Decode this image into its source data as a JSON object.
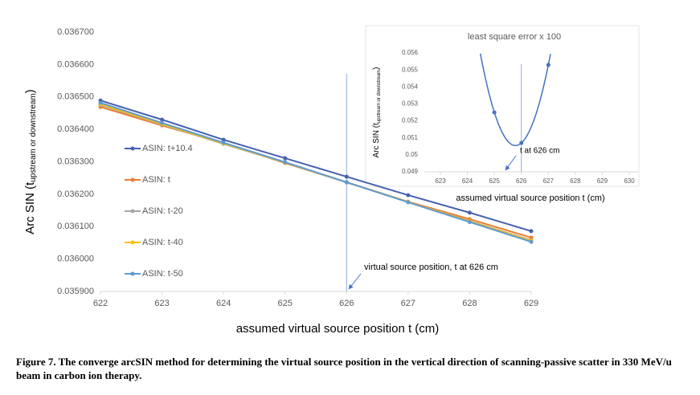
{
  "chart_data": [
    {
      "type": "line",
      "x_label": "assumed virtual source position t (cm)",
      "y_label": [
        "Arc SIN (t",
        "upstream or downstream",
        ")"
      ],
      "x": [
        622,
        623,
        624,
        625,
        626,
        627,
        628,
        629
      ],
      "xlim": [
        622,
        629
      ],
      "xticks": [
        622,
        623,
        624,
        625,
        626,
        627,
        628,
        629
      ],
      "ylim": [
        0.0359,
        0.0367
      ],
      "yticks": [
        {
          "value": 0.0359,
          "label": "0.035900"
        },
        {
          "value": 0.036,
          "label": "0.036000"
        },
        {
          "value": 0.0361,
          "label": "0.036100"
        },
        {
          "value": 0.0362,
          "label": "0.036200"
        },
        {
          "value": 0.0363,
          "label": "0.036300"
        },
        {
          "value": 0.0364,
          "label": "0.036400"
        },
        {
          "value": 0.0365,
          "label": "0.036500"
        },
        {
          "value": 0.0366,
          "label": "0.036600"
        },
        {
          "value": 0.0367,
          "label": "0.036700"
        }
      ],
      "grid": false,
      "legend": "left",
      "vline": 626,
      "annotation": "virtual source position, t  at 626 cm",
      "series": [
        {
          "name": "ASIN: t+10.4",
          "color": "#4661b0",
          "values": [
            0.036489,
            0.03643,
            0.036368,
            0.036311,
            0.036254,
            0.036197,
            0.036143,
            0.036086
          ]
        },
        {
          "name": "ASIN: t",
          "color": "#ed7d31",
          "values": [
            0.036469,
            0.036412,
            0.036358,
            0.036296,
            0.036237,
            0.036177,
            0.036123,
            0.036066
          ]
        },
        {
          "name": "ASIN: t-20",
          "color": "#a5a5a5",
          "values": [
            0.036475,
            0.036415,
            0.036355,
            0.036297,
            0.036236,
            0.036176,
            0.036117,
            0.036058
          ]
        },
        {
          "name": "ASIN: t-40",
          "color": "#ffc000",
          "values": [
            0.036478,
            0.036417,
            0.036357,
            0.036298,
            0.036237,
            0.036176,
            0.036116,
            0.036056
          ]
        },
        {
          "name": "ASIN: t-50",
          "color": "#5b9bd5",
          "values": [
            0.036482,
            0.03642,
            0.036359,
            0.036299,
            0.036237,
            0.036175,
            0.036114,
            0.036053
          ]
        }
      ]
    },
    {
      "type": "parabola",
      "title": "least square error x 100",
      "x_label": "assumed virtual source position t (cm)",
      "y_label": [
        "Arc SIN (t",
        "upstream or downstream",
        ")"
      ],
      "x": [
        625,
        626,
        627
      ],
      "xlim": [
        623,
        630
      ],
      "xticks": [
        623,
        624,
        625,
        626,
        627,
        628,
        629,
        630
      ],
      "ylim": [
        0.049,
        0.056
      ],
      "yticks": [
        0.049,
        0.05,
        0.051,
        0.052,
        0.053,
        0.054,
        0.055,
        0.056
      ],
      "vline": 626,
      "annotation": "t  at 626 cm",
      "series": [
        {
          "name": "least square error",
          "color": "#4472c4",
          "values": [
            0.0525,
            0.0507,
            0.0553
          ]
        }
      ]
    }
  ],
  "caption": "Figure 7. The converge arcSIN method for determining the virtual source position in the vertical direction of scanning-passive scatter in 330 MeV/u beam in carbon ion therapy."
}
